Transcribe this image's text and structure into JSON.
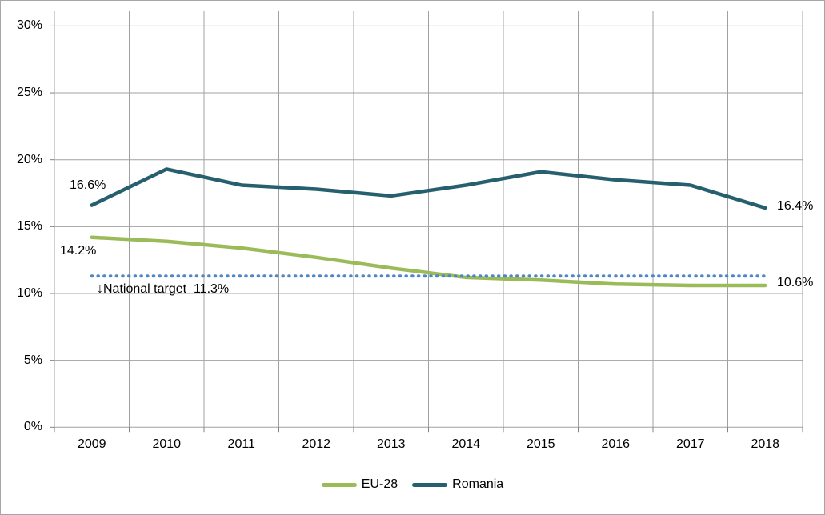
{
  "chart_data": {
    "type": "line",
    "title": "",
    "xlabel": "",
    "ylabel": "",
    "x": [
      "2009",
      "2010",
      "2011",
      "2012",
      "2013",
      "2014",
      "2015",
      "2016",
      "2017",
      "2018"
    ],
    "y_ticks": [
      {
        "label": "30%",
        "value": 30
      },
      {
        "label": "25%",
        "value": 25
      },
      {
        "label": "20%",
        "value": 20
      },
      {
        "label": "15%",
        "value": 15
      },
      {
        "label": "10%",
        "value": 10
      },
      {
        "label": "5%",
        "value": 5
      },
      {
        "label": "0%",
        "value": 0
      }
    ],
    "ylim": [
      0,
      31
    ],
    "grid": "both",
    "series": [
      {
        "name": "EU-28",
        "color": "#9bbb59",
        "style": "solid",
        "values": [
          14.2,
          13.9,
          13.4,
          12.7,
          11.9,
          11.2,
          11.0,
          10.7,
          10.6,
          10.6
        ]
      },
      {
        "name": "Romania",
        "color": "#265f6e",
        "style": "solid",
        "values": [
          16.6,
          19.3,
          18.1,
          17.8,
          17.3,
          18.1,
          19.1,
          18.5,
          18.1,
          16.4
        ]
      },
      {
        "name": "National target",
        "color": "#4f86c8",
        "style": "dotted",
        "values": [
          11.3,
          11.3,
          11.3,
          11.3,
          11.3,
          11.3,
          11.3,
          11.3,
          11.3,
          11.3
        ],
        "in_legend": false
      }
    ],
    "legend": {
      "position": "bottom",
      "entries": [
        {
          "label": "EU-28",
          "color": "#9bbb59"
        },
        {
          "label": "Romania",
          "color": "#265f6e"
        }
      ]
    },
    "annotations": [
      {
        "text": "16.6%",
        "series": "Romania",
        "x": "2009"
      },
      {
        "text": "14.2%",
        "series": "EU-28",
        "x": "2009"
      },
      {
        "text": "16.4%",
        "series": "Romania",
        "x": "2018"
      },
      {
        "text": "10.6%",
        "series": "EU-28",
        "x": "2018"
      },
      {
        "text": "↓National target  11.3%",
        "series": "National target",
        "x": "2009"
      }
    ],
    "colors": {
      "eu28_line": "#9bbb59",
      "romania_line": "#265f6e",
      "target_line": "#4f86c8",
      "gridline": "#a0a0a0",
      "axis": "#808080",
      "text": "#000000",
      "background": "#ffffff",
      "border": "#a6a6a6"
    }
  }
}
